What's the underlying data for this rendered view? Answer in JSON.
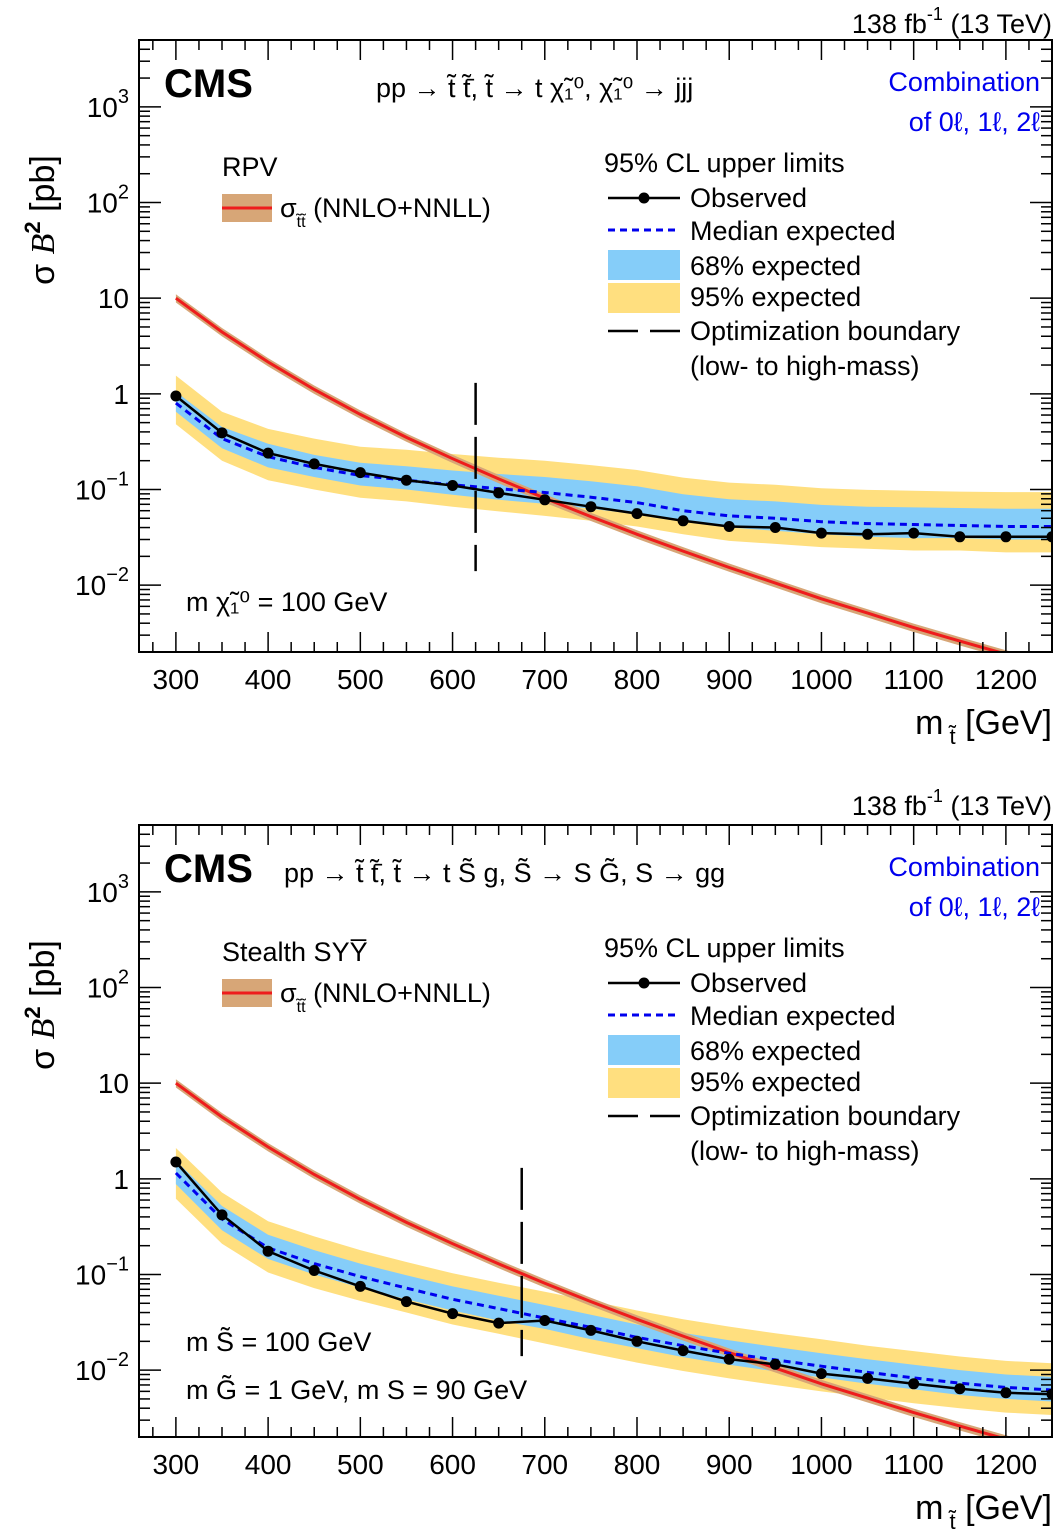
{
  "chart_data": [
    {
      "type": "line",
      "experiment": "CMS",
      "lumi": "138 fb-1 (13 TeV)",
      "lumi_main": "138 fb",
      "lumi_exp": "-1",
      "lumi_energy": "(13 TeV)",
      "process": "pp → t̃ t̃̄, t̃ → t χ̃₁⁰, χ̃₁⁰ → jjj",
      "combination_line1": "Combination",
      "combination_line2": "of 0ℓ, 1ℓ, 2ℓ",
      "model": "RPV",
      "theory_label": "σt̃t̃ (NNLO+NNLL)",
      "legend_header": "95% CL upper limits",
      "legend_observed": "Observed",
      "legend_median": "Median expected",
      "legend_68": "68% expected",
      "legend_95": "95% expected",
      "legend_boundary_line1": "Optimization boundary",
      "legend_boundary_line2": "(low- to high-mass)",
      "mass_note": [
        "m χ̃₁⁰ = 100 GeV"
      ],
      "xlabel": "m t̃ [GeV]",
      "ylabel": "σ B² [pb]",
      "xlim": [
        260,
        1250
      ],
      "ylim": [
        0.002,
        5000
      ],
      "log_y": true,
      "xticks": [
        300,
        400,
        500,
        600,
        700,
        800,
        900,
        1000,
        1100,
        1200
      ],
      "yticks": [
        {
          "v": 0.01,
          "base": "10",
          "exp": "−2"
        },
        {
          "v": 0.1,
          "base": "10",
          "exp": "−1"
        },
        {
          "v": 1,
          "base": "1",
          "exp": ""
        },
        {
          "v": 10,
          "base": "10",
          "exp": ""
        },
        {
          "v": 100,
          "base": "10",
          "exp": "2"
        },
        {
          "v": 1000,
          "base": "10",
          "exp": "3"
        }
      ],
      "boundary_x": 625,
      "theory": {
        "x": [
          300,
          350,
          400,
          450,
          500,
          550,
          600,
          650,
          700,
          750,
          800,
          850,
          900,
          950,
          1000,
          1050,
          1100,
          1150,
          1200,
          1250
        ],
        "y": [
          10.0,
          4.43,
          2.15,
          1.11,
          0.61,
          0.35,
          0.21,
          0.129,
          0.081,
          0.052,
          0.034,
          0.0227,
          0.0153,
          0.0105,
          0.0072,
          0.0051,
          0.0036,
          0.0026,
          0.0019,
          0.0014
        ]
      },
      "observed": {
        "x": [
          300,
          350,
          400,
          450,
          500,
          550,
          600,
          650,
          700,
          750,
          800,
          850,
          900,
          950,
          1000,
          1050,
          1100,
          1150,
          1200,
          1250
        ],
        "y": [
          0.95,
          0.39,
          0.24,
          0.185,
          0.15,
          0.125,
          0.11,
          0.092,
          0.078,
          0.066,
          0.056,
          0.047,
          0.041,
          0.04,
          0.035,
          0.034,
          0.035,
          0.032,
          0.032,
          0.032
        ]
      },
      "expected": {
        "x": [
          300,
          350,
          400,
          450,
          500,
          550,
          600,
          650,
          700,
          750,
          800,
          850,
          900,
          950,
          1000,
          1050,
          1100,
          1150,
          1200,
          1250
        ],
        "median": [
          0.8,
          0.34,
          0.22,
          0.17,
          0.14,
          0.125,
          0.112,
          0.102,
          0.093,
          0.083,
          0.073,
          0.06,
          0.053,
          0.05,
          0.046,
          0.044,
          0.043,
          0.042,
          0.041,
          0.041
        ],
        "band68_low": [
          0.65,
          0.27,
          0.17,
          0.135,
          0.11,
          0.1,
          0.088,
          0.078,
          0.071,
          0.063,
          0.055,
          0.046,
          0.04,
          0.037,
          0.034,
          0.032,
          0.031,
          0.031,
          0.03,
          0.03
        ],
        "band68_high": [
          1.05,
          0.45,
          0.3,
          0.23,
          0.19,
          0.175,
          0.158,
          0.145,
          0.135,
          0.122,
          0.108,
          0.089,
          0.079,
          0.075,
          0.069,
          0.066,
          0.065,
          0.064,
          0.063,
          0.063
        ],
        "band95_low": [
          0.48,
          0.2,
          0.125,
          0.1,
          0.082,
          0.075,
          0.066,
          0.059,
          0.053,
          0.047,
          0.041,
          0.034,
          0.029,
          0.027,
          0.025,
          0.024,
          0.023,
          0.023,
          0.022,
          0.022
        ],
        "band95_high": [
          1.55,
          0.65,
          0.43,
          0.34,
          0.28,
          0.26,
          0.235,
          0.215,
          0.2,
          0.18,
          0.16,
          0.133,
          0.118,
          0.112,
          0.103,
          0.099,
          0.097,
          0.095,
          0.094,
          0.094
        ]
      }
    },
    {
      "type": "line",
      "experiment": "CMS",
      "lumi": "138 fb-1 (13 TeV)",
      "lumi_main": "138 fb",
      "lumi_exp": "-1",
      "lumi_energy": "(13 TeV)",
      "process": "pp → t̃ t̃̄, t̃ → t S̃ g, S̃ → S G̃, S → gg",
      "combination_line1": "Combination",
      "combination_line2": "of 0ℓ, 1ℓ, 2ℓ",
      "model": "Stealth SYY̅",
      "theory_label": "σt̃t̃ (NNLO+NNLL)",
      "legend_header": "95% CL upper limits",
      "legend_observed": "Observed",
      "legend_median": "Median expected",
      "legend_68": "68% expected",
      "legend_95": "95% expected",
      "legend_boundary_line1": "Optimization boundary",
      "legend_boundary_line2": "(low- to high-mass)",
      "mass_note": [
        "m S̃ = 100 GeV",
        "m G̃ = 1 GeV, m S = 90 GeV"
      ],
      "xlabel": "m t̃ [GeV]",
      "ylabel": "σ B² [pb]",
      "xlim": [
        260,
        1250
      ],
      "ylim": [
        0.002,
        5000
      ],
      "log_y": true,
      "xticks": [
        300,
        400,
        500,
        600,
        700,
        800,
        900,
        1000,
        1100,
        1200
      ],
      "yticks": [
        {
          "v": 0.01,
          "base": "10",
          "exp": "−2"
        },
        {
          "v": 0.1,
          "base": "10",
          "exp": "−1"
        },
        {
          "v": 1,
          "base": "1",
          "exp": ""
        },
        {
          "v": 10,
          "base": "10",
          "exp": ""
        },
        {
          "v": 100,
          "base": "10",
          "exp": "2"
        },
        {
          "v": 1000,
          "base": "10",
          "exp": "3"
        }
      ],
      "boundary_x": 675,
      "theory": {
        "x": [
          300,
          350,
          400,
          450,
          500,
          550,
          600,
          650,
          700,
          750,
          800,
          850,
          900,
          950,
          1000,
          1050,
          1100,
          1150,
          1200,
          1250
        ],
        "y": [
          10.0,
          4.43,
          2.15,
          1.11,
          0.61,
          0.35,
          0.21,
          0.129,
          0.081,
          0.052,
          0.034,
          0.0227,
          0.0153,
          0.0105,
          0.0072,
          0.0051,
          0.0036,
          0.0026,
          0.0019,
          0.0014
        ]
      },
      "observed": {
        "x": [
          300,
          350,
          400,
          450,
          500,
          550,
          600,
          650,
          700,
          750,
          800,
          850,
          900,
          950,
          1000,
          1050,
          1100,
          1150,
          1200,
          1250
        ],
        "y": [
          1.5,
          0.42,
          0.175,
          0.11,
          0.075,
          0.052,
          0.039,
          0.031,
          0.033,
          0.026,
          0.02,
          0.016,
          0.013,
          0.0115,
          0.0092,
          0.0082,
          0.0072,
          0.0064,
          0.0058,
          0.0056
        ]
      },
      "expected": {
        "x": [
          300,
          350,
          400,
          450,
          500,
          550,
          600,
          650,
          700,
          750,
          800,
          850,
          900,
          950,
          1000,
          1050,
          1100,
          1150,
          1200,
          1250
        ],
        "median": [
          1.15,
          0.38,
          0.19,
          0.13,
          0.095,
          0.072,
          0.055,
          0.044,
          0.035,
          0.028,
          0.022,
          0.018,
          0.015,
          0.0128,
          0.011,
          0.0095,
          0.0083,
          0.0073,
          0.0066,
          0.0062
        ],
        "band68_low": [
          0.88,
          0.29,
          0.145,
          0.1,
          0.073,
          0.055,
          0.042,
          0.033,
          0.027,
          0.021,
          0.017,
          0.0137,
          0.0114,
          0.0097,
          0.0084,
          0.0072,
          0.0063,
          0.0055,
          0.005,
          0.0047
        ],
        "band68_high": [
          1.55,
          0.52,
          0.26,
          0.18,
          0.13,
          0.098,
          0.075,
          0.06,
          0.048,
          0.038,
          0.03,
          0.0245,
          0.0205,
          0.0175,
          0.015,
          0.013,
          0.0114,
          0.01,
          0.009,
          0.0085
        ],
        "band95_low": [
          0.62,
          0.21,
          0.105,
          0.072,
          0.053,
          0.04,
          0.03,
          0.024,
          0.019,
          0.015,
          0.012,
          0.0098,
          0.0082,
          0.007,
          0.006,
          0.0052,
          0.0045,
          0.004,
          0.0036,
          0.0034
        ],
        "band95_high": [
          2.1,
          0.72,
          0.36,
          0.25,
          0.18,
          0.135,
          0.103,
          0.082,
          0.066,
          0.053,
          0.042,
          0.034,
          0.0285,
          0.0243,
          0.021,
          0.018,
          0.0158,
          0.0139,
          0.0125,
          0.0118
        ]
      }
    }
  ]
}
